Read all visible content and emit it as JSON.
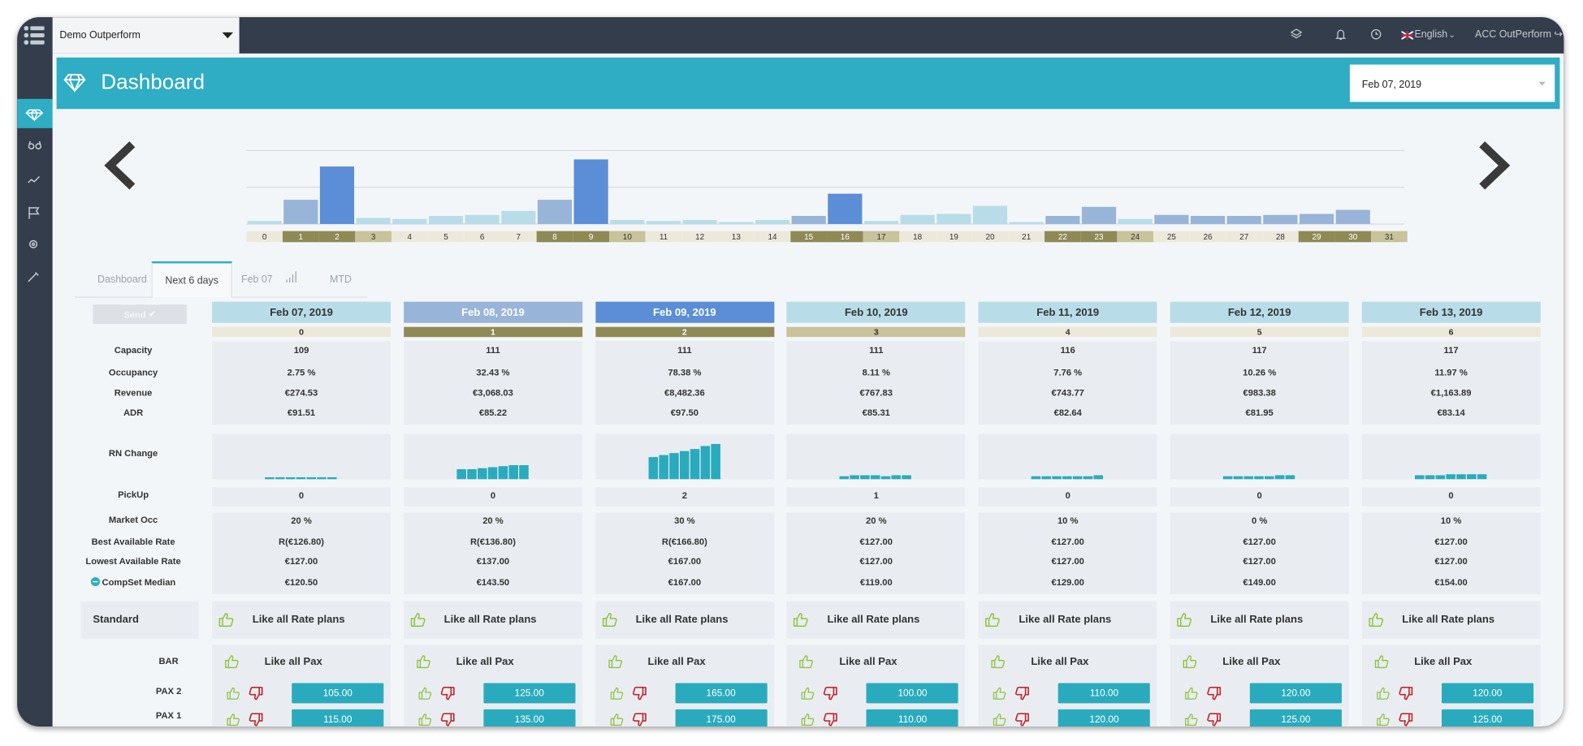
{
  "topbar": {
    "property": "Demo Outperform",
    "language": "English",
    "user": "ACC OutPerform"
  },
  "header": {
    "title": "Dashboard",
    "date": "Feb 07, 2019"
  },
  "chart_data": {
    "type": "bar",
    "categories": [
      "0",
      "1",
      "2",
      "3",
      "4",
      "5",
      "6",
      "7",
      "8",
      "9",
      "10",
      "11",
      "12",
      "13",
      "14",
      "15",
      "16",
      "17",
      "18",
      "19",
      "20",
      "21",
      "22",
      "23",
      "24",
      "25",
      "26",
      "27",
      "28",
      "29",
      "30",
      "31"
    ],
    "values": [
      3,
      24,
      57,
      6,
      5,
      8,
      9,
      13,
      24,
      64,
      4,
      3,
      4,
      2,
      4,
      8,
      30,
      3,
      9,
      10,
      18,
      2,
      8,
      17,
      5,
      9,
      8,
      8,
      9,
      10,
      14,
      0
    ],
    "colors": [
      "#b8dde8",
      "#98b4d8",
      "#5b8ed6",
      "#b8dde8",
      "#b8dde8",
      "#b8dde8",
      "#b8dde8",
      "#b8dde8",
      "#98b4d8",
      "#5b8ed6",
      "#b8dde8",
      "#b8dde8",
      "#b8dde8",
      "#b8dde8",
      "#b8dde8",
      "#98b4d8",
      "#5b8ed6",
      "#b8dde8",
      "#b8dde8",
      "#b8dde8",
      "#b8dde8",
      "#b8dde8",
      "#98b4d8",
      "#98b4d8",
      "#b8dde8",
      "#98b4d8",
      "#98b4d8",
      "#98b4d8",
      "#98b4d8",
      "#98b4d8",
      "#98b4d8",
      "#b8dde8"
    ],
    "category_colors": [
      "#ede9da",
      "#8f8a55",
      "#8f8a55",
      "#c9c29a",
      "#ede9da",
      "#ede9da",
      "#ede9da",
      "#ede9da",
      "#8f8a55",
      "#8f8a55",
      "#c9c29a",
      "#ede9da",
      "#ede9da",
      "#ede9da",
      "#ede9da",
      "#8f8a55",
      "#8f8a55",
      "#c9c29a",
      "#ede9da",
      "#ede9da",
      "#ede9da",
      "#ede9da",
      "#8f8a55",
      "#8f8a55",
      "#c9c29a",
      "#ede9da",
      "#ede9da",
      "#ede9da",
      "#ede9da",
      "#8f8a55",
      "#8f8a55",
      "#c9c29a"
    ],
    "ylim": [
      0,
      73
    ],
    "grid": true
  },
  "tabs": [
    "Dashboard",
    "Next 6 days",
    "Feb 07",
    "MTD"
  ],
  "send_button": "Send",
  "row_labels": {
    "capacity": "Capacity",
    "occupancy": "Occupancy",
    "revenue": "Revenue",
    "adr": "ADR",
    "rn_change": "RN Change",
    "pickup": "PickUp",
    "market_occ": "Market Occ",
    "best_rate": "Best Available Rate",
    "lowest_rate": "Lowest Available Rate",
    "compset": "CompSet Median",
    "standard": "Standard",
    "bar": "BAR",
    "pax2": "PAX 2",
    "pax1": "PAX 1"
  },
  "rn_change_ylim": [
    0,
    40
  ],
  "days": [
    {
      "date": "Feb 07, 2019",
      "color": "#b8dde8",
      "index": "0",
      "index_color": "#ede9da",
      "capacity": "109",
      "occupancy": "2.75 %",
      "revenue": "€274.53",
      "adr": "€91.51",
      "rn_change": [
        2,
        2,
        2,
        2,
        2,
        2,
        2
      ],
      "pickup": "0",
      "market_occ": "20 %",
      "best_rate": "R(€126.80)",
      "lowest_rate": "€127.00",
      "compset": "€120.50",
      "standard": "Like all Rate plans",
      "bar": "Like all Pax",
      "pax2": "105.00",
      "pax1": "115.00"
    },
    {
      "date": "Feb 08, 2019",
      "color": "#98b4d8",
      "index": "1",
      "index_color": "#8f8a55",
      "capacity": "111",
      "occupancy": "32.43 %",
      "revenue": "€3,068.03",
      "adr": "€85.22",
      "rn_change": [
        10,
        10,
        11,
        12,
        13,
        14,
        14
      ],
      "pickup": "0",
      "market_occ": "20 %",
      "best_rate": "R(€136.80)",
      "lowest_rate": "€137.00",
      "compset": "€143.50",
      "standard": "Like all Rate plans",
      "bar": "Like all Pax",
      "pax2": "125.00",
      "pax1": "135.00"
    },
    {
      "date": "Feb 09, 2019",
      "color": "#5b8ed6",
      "index": "2",
      "index_color": "#8f8a55",
      "capacity": "111",
      "occupancy": "78.38 %",
      "revenue": "€8,482.36",
      "adr": "€97.50",
      "rn_change": [
        22,
        24,
        26,
        28,
        30,
        33,
        35
      ],
      "pickup": "2",
      "market_occ": "30 %",
      "best_rate": "R(€166.80)",
      "lowest_rate": "€167.00",
      "compset": "€167.00",
      "standard": "Like all Rate plans",
      "bar": "Like all Pax",
      "pax2": "165.00",
      "pax1": "175.00"
    },
    {
      "date": "Feb 10, 2019",
      "color": "#b8dde8",
      "index": "3",
      "index_color": "#c9c29a",
      "capacity": "111",
      "occupancy": "8.11 %",
      "revenue": "€767.83",
      "adr": "€85.31",
      "rn_change": [
        3,
        4,
        4,
        4,
        3,
        4,
        4
      ],
      "pickup": "1",
      "market_occ": "20 %",
      "best_rate": "€127.00",
      "lowest_rate": "€127.00",
      "compset": "€119.00",
      "standard": "Like all Rate plans",
      "bar": "Like all Pax",
      "pax2": "100.00",
      "pax1": "110.00"
    },
    {
      "date": "Feb 11, 2019",
      "color": "#b8dde8",
      "index": "4",
      "index_color": "#ede9da",
      "capacity": "116",
      "occupancy": "7.76 %",
      "revenue": "€743.77",
      "adr": "€82.64",
      "rn_change": [
        3,
        3,
        3,
        3,
        3,
        3,
        4
      ],
      "pickup": "0",
      "market_occ": "10 %",
      "best_rate": "€127.00",
      "lowest_rate": "€127.00",
      "compset": "€129.00",
      "standard": "Like all Rate plans",
      "bar": "Like all Pax",
      "pax2": "110.00",
      "pax1": "120.00"
    },
    {
      "date": "Feb 12, 2019",
      "color": "#b8dde8",
      "index": "5",
      "index_color": "#ede9da",
      "capacity": "117",
      "occupancy": "10.26 %",
      "revenue": "€983.38",
      "adr": "€81.95",
      "rn_change": [
        3,
        3,
        3,
        3,
        3,
        4,
        4
      ],
      "pickup": "0",
      "market_occ": "0 %",
      "best_rate": "€127.00",
      "lowest_rate": "€127.00",
      "compset": "€149.00",
      "standard": "Like all Rate plans",
      "bar": "Like all Pax",
      "pax2": "120.00",
      "pax1": "125.00"
    },
    {
      "date": "Feb 13, 2019",
      "color": "#b8dde8",
      "index": "6",
      "index_color": "#ede9da",
      "capacity": "117",
      "occupancy": "11.97 %",
      "revenue": "€1,163.89",
      "adr": "€83.14",
      "rn_change": [
        4,
        4,
        4,
        5,
        5,
        5,
        5
      ],
      "pickup": "0",
      "market_occ": "10 %",
      "best_rate": "€127.00",
      "lowest_rate": "€127.00",
      "compset": "€154.00",
      "standard": "Like all Rate plans",
      "bar": "Like all Pax",
      "pax2": "120.00",
      "pax1": "125.00"
    }
  ]
}
